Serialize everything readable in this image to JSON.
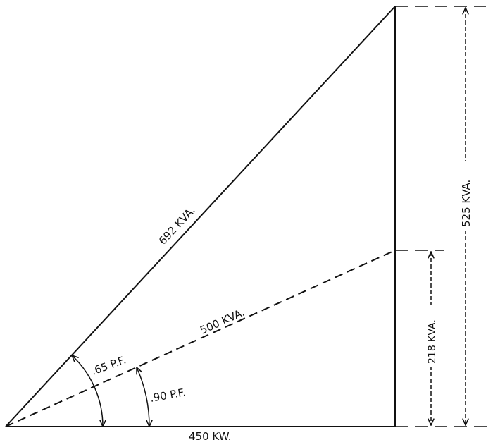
{
  "diagram": {
    "labels": {
      "hypotenuse": "692 KVA.",
      "dashed_line": "500 KVA.",
      "base": "450 KW.",
      "vertical_full": "525 KVA.",
      "vertical_partial": "218 KVA.",
      "angle_large": ".65 P.F.",
      "angle_small": ".90 P.F."
    },
    "line_color": "#111111",
    "background": "#ffffff"
  }
}
